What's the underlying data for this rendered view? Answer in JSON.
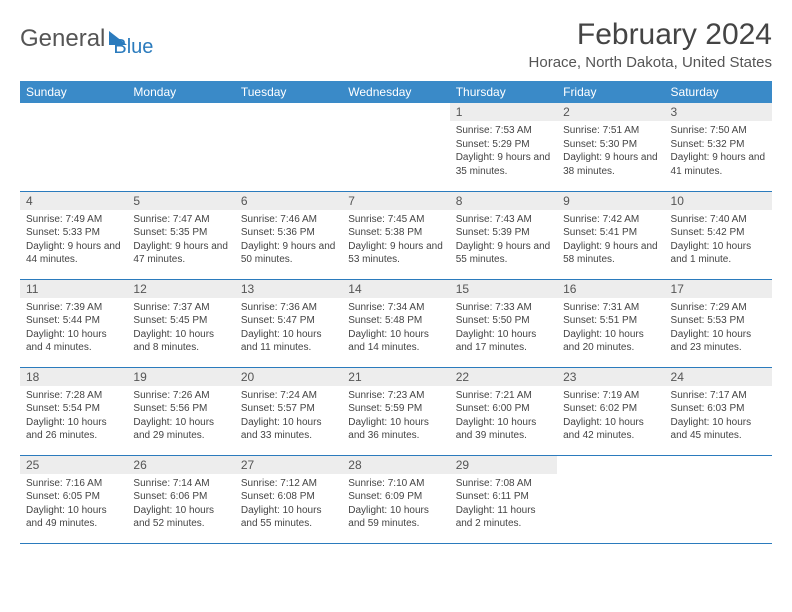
{
  "logo": {
    "general": "General",
    "blue": "Blue"
  },
  "title": "February 2024",
  "location": "Horace, North Dakota, United States",
  "colors": {
    "header_bg": "#3a8ac8",
    "border": "#2b7bbd",
    "daynum_bg": "#ededed",
    "text": "#444",
    "logo_blue": "#2b7bbd",
    "logo_gray": "#555"
  },
  "day_labels": [
    "Sunday",
    "Monday",
    "Tuesday",
    "Wednesday",
    "Thursday",
    "Friday",
    "Saturday"
  ],
  "weeks": [
    [
      null,
      null,
      null,
      null,
      {
        "n": "1",
        "sr": "7:53 AM",
        "ss": "5:29 PM",
        "dl": "9 hours and 35 minutes."
      },
      {
        "n": "2",
        "sr": "7:51 AM",
        "ss": "5:30 PM",
        "dl": "9 hours and 38 minutes."
      },
      {
        "n": "3",
        "sr": "7:50 AM",
        "ss": "5:32 PM",
        "dl": "9 hours and 41 minutes."
      }
    ],
    [
      {
        "n": "4",
        "sr": "7:49 AM",
        "ss": "5:33 PM",
        "dl": "9 hours and 44 minutes."
      },
      {
        "n": "5",
        "sr": "7:47 AM",
        "ss": "5:35 PM",
        "dl": "9 hours and 47 minutes."
      },
      {
        "n": "6",
        "sr": "7:46 AM",
        "ss": "5:36 PM",
        "dl": "9 hours and 50 minutes."
      },
      {
        "n": "7",
        "sr": "7:45 AM",
        "ss": "5:38 PM",
        "dl": "9 hours and 53 minutes."
      },
      {
        "n": "8",
        "sr": "7:43 AM",
        "ss": "5:39 PM",
        "dl": "9 hours and 55 minutes."
      },
      {
        "n": "9",
        "sr": "7:42 AM",
        "ss": "5:41 PM",
        "dl": "9 hours and 58 minutes."
      },
      {
        "n": "10",
        "sr": "7:40 AM",
        "ss": "5:42 PM",
        "dl": "10 hours and 1 minute."
      }
    ],
    [
      {
        "n": "11",
        "sr": "7:39 AM",
        "ss": "5:44 PM",
        "dl": "10 hours and 4 minutes."
      },
      {
        "n": "12",
        "sr": "7:37 AM",
        "ss": "5:45 PM",
        "dl": "10 hours and 8 minutes."
      },
      {
        "n": "13",
        "sr": "7:36 AM",
        "ss": "5:47 PM",
        "dl": "10 hours and 11 minutes."
      },
      {
        "n": "14",
        "sr": "7:34 AM",
        "ss": "5:48 PM",
        "dl": "10 hours and 14 minutes."
      },
      {
        "n": "15",
        "sr": "7:33 AM",
        "ss": "5:50 PM",
        "dl": "10 hours and 17 minutes."
      },
      {
        "n": "16",
        "sr": "7:31 AM",
        "ss": "5:51 PM",
        "dl": "10 hours and 20 minutes."
      },
      {
        "n": "17",
        "sr": "7:29 AM",
        "ss": "5:53 PM",
        "dl": "10 hours and 23 minutes."
      }
    ],
    [
      {
        "n": "18",
        "sr": "7:28 AM",
        "ss": "5:54 PM",
        "dl": "10 hours and 26 minutes."
      },
      {
        "n": "19",
        "sr": "7:26 AM",
        "ss": "5:56 PM",
        "dl": "10 hours and 29 minutes."
      },
      {
        "n": "20",
        "sr": "7:24 AM",
        "ss": "5:57 PM",
        "dl": "10 hours and 33 minutes."
      },
      {
        "n": "21",
        "sr": "7:23 AM",
        "ss": "5:59 PM",
        "dl": "10 hours and 36 minutes."
      },
      {
        "n": "22",
        "sr": "7:21 AM",
        "ss": "6:00 PM",
        "dl": "10 hours and 39 minutes."
      },
      {
        "n": "23",
        "sr": "7:19 AM",
        "ss": "6:02 PM",
        "dl": "10 hours and 42 minutes."
      },
      {
        "n": "24",
        "sr": "7:17 AM",
        "ss": "6:03 PM",
        "dl": "10 hours and 45 minutes."
      }
    ],
    [
      {
        "n": "25",
        "sr": "7:16 AM",
        "ss": "6:05 PM",
        "dl": "10 hours and 49 minutes."
      },
      {
        "n": "26",
        "sr": "7:14 AM",
        "ss": "6:06 PM",
        "dl": "10 hours and 52 minutes."
      },
      {
        "n": "27",
        "sr": "7:12 AM",
        "ss": "6:08 PM",
        "dl": "10 hours and 55 minutes."
      },
      {
        "n": "28",
        "sr": "7:10 AM",
        "ss": "6:09 PM",
        "dl": "10 hours and 59 minutes."
      },
      {
        "n": "29",
        "sr": "7:08 AM",
        "ss": "6:11 PM",
        "dl": "11 hours and 2 minutes."
      },
      null,
      null
    ]
  ],
  "labels": {
    "sunrise": "Sunrise: ",
    "sunset": "Sunset: ",
    "daylight": "Daylight: "
  }
}
